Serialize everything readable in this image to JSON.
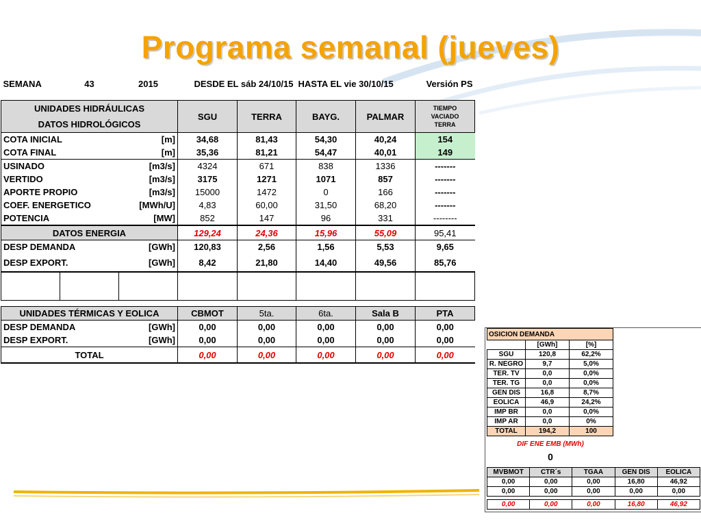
{
  "title": "Programa semanal (jueves)",
  "header": {
    "semana_label": "SEMANA",
    "semana_num": "43",
    "year": "2015",
    "desde_label": "DESDE EL",
    "desde_value": "sáb 24/10/15",
    "hasta_label": "HASTA EL",
    "hasta_value": "vie 30/10/15",
    "version_label": "Versión",
    "version_value": "PS"
  },
  "hydro": {
    "header_line1": "UNIDADES HIDRÁULICAS",
    "header_line2": "DATOS HIDROLÓGICOS",
    "columns": [
      "SGU",
      "TERRA",
      "BAYG.",
      "PALMAR"
    ],
    "tiempo": [
      "TIEMPO",
      "VACIADO",
      "TERRA"
    ],
    "rows": [
      {
        "label": "COTA INICIAL",
        "unit": "[m]",
        "values": [
          "34,68",
          "81,43",
          "54,30",
          "40,24"
        ],
        "last": "154"
      },
      {
        "label": "COTA FINAL",
        "unit": "[m]",
        "values": [
          "35,36",
          "81,21",
          "54,47",
          "40,01"
        ],
        "last": "149"
      },
      {
        "label": "USINADO",
        "unit": "[m3/s]",
        "values": [
          "4324",
          "671",
          "838",
          "1336"
        ],
        "last": "-------"
      },
      {
        "label": "VERTIDO",
        "unit": "[m3/s]",
        "values": [
          "3175",
          "1271",
          "1071",
          "857"
        ],
        "last": "-------"
      },
      {
        "label": "APORTE PROPIO",
        "unit": "[m3/s]",
        "values": [
          "15000",
          "1472",
          "0",
          "166"
        ],
        "last": "-------"
      },
      {
        "label": "COEF. ENERGETICO",
        "unit": "[MWh/U]",
        "values": [
          "4,83",
          "60,00",
          "31,50",
          "68,20"
        ],
        "last": "-------"
      },
      {
        "label": "POTENCIA",
        "unit": "[MW]",
        "values": [
          "852",
          "147",
          "96",
          "331"
        ],
        "last": "--------"
      }
    ],
    "energia": {
      "label": "DATOS ENERGIA",
      "values": [
        "129,24",
        "24,36",
        "15,96",
        "55,09"
      ],
      "last": "95,41"
    },
    "demanda": {
      "label": "DESP DEMANDA",
      "unit": "[GWh]",
      "values": [
        "120,83",
        "2,56",
        "1,56",
        "5,53",
        "9,65"
      ]
    },
    "export": {
      "label": "DESP EXPORT.",
      "unit": "[GWh]",
      "values": [
        "8,42",
        "21,80",
        "14,40",
        "49,56",
        "85,76"
      ]
    }
  },
  "thermal": {
    "header": "UNIDADES TÉRMICAS Y EOLICA",
    "columns": [
      "CBMOT",
      "5ta.",
      "6ta.",
      "Sala B",
      "PTA"
    ],
    "demanda": {
      "label": "DESP DEMANDA",
      "unit": "[GWh]",
      "values": [
        "0,00",
        "0,00",
        "0,00",
        "0,00",
        "0,00"
      ]
    },
    "export": {
      "label": "DESP EXPORT.",
      "unit": "[GWh]",
      "values": [
        "0,00",
        "0,00",
        "0,00",
        "0,00",
        "0,00"
      ]
    },
    "total": {
      "label": "TOTAL",
      "values": [
        "0,00",
        "0,00",
        "0,00",
        "0,00",
        "0,00"
      ]
    }
  },
  "composicion": {
    "banner": "OSICION DEMANDA",
    "col1": "[GWh]",
    "col2": "[%]",
    "rows": [
      {
        "label": "SGU",
        "gwh": "120,8",
        "pct": "62,2%"
      },
      {
        "label": "R. NEGRO",
        "gwh": "9,7",
        "pct": "5,0%"
      },
      {
        "label": "TER. TV",
        "gwh": "0,0",
        "pct": "0,0%"
      },
      {
        "label": "TER. TG",
        "gwh": "0,0",
        "pct": "0,0%"
      },
      {
        "label": "GEN DIS",
        "gwh": "16,8",
        "pct": "8,7%"
      },
      {
        "label": "EOLICA",
        "gwh": "46,9",
        "pct": "24,2%"
      },
      {
        "label": "IMP BR",
        "gwh": "0,0",
        "pct": "0,0%"
      },
      {
        "label": "IMP AR",
        "gwh": "0,0",
        "pct": "0%"
      }
    ],
    "total": {
      "label": "TOTAL",
      "gwh": "194,2",
      "pct": "100"
    },
    "dif_label": "DIF ENE EMB (MWh)",
    "dif_value": "0"
  },
  "mv": {
    "columns": [
      "MVBMOT",
      "CTR´s",
      "TGAA",
      "GEN DIS",
      "EOLICA"
    ],
    "rows": [
      [
        "0,00",
        "0,00",
        "0,00",
        "16,80",
        "46,92"
      ],
      [
        "0,00",
        "0,00",
        "0,00",
        "0,00",
        "0,00"
      ]
    ],
    "total": [
      "0,00",
      "0,00",
      "0,00",
      "16,80",
      "46,92"
    ]
  },
  "colors": {
    "title": "#f5a300",
    "header_bg": "#d9d9d9",
    "green_cell": "#c6efce",
    "orange_cell": "#fbd5b5",
    "red_text": "#e00000"
  }
}
